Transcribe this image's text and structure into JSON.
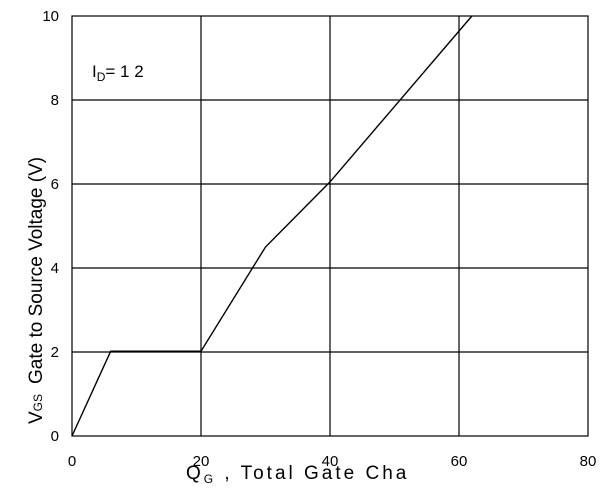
{
  "chart_data": {
    "type": "line",
    "ylabel": {
      "main": "V",
      "sub": "GS",
      "text": "Gate to Source Voltage (V)"
    },
    "xlabel": {
      "main": "Q",
      "sub": "G",
      "text": " ,  Total Gate Cha"
    },
    "annotation": {
      "main": "I",
      "sub": "D",
      "text": "= 1 2"
    },
    "xlim": [
      0,
      80
    ],
    "ylim": [
      0,
      10
    ],
    "x_ticks": [
      0,
      20,
      40,
      60,
      80
    ],
    "y_ticks": [
      0,
      2,
      4,
      6,
      8,
      10
    ],
    "grid": true,
    "series": [
      {
        "x": [
          0,
          6,
          20,
          30,
          40,
          62
        ],
        "y": [
          0,
          2.02,
          2.02,
          4.5,
          6.05,
          10
        ]
      }
    ]
  }
}
